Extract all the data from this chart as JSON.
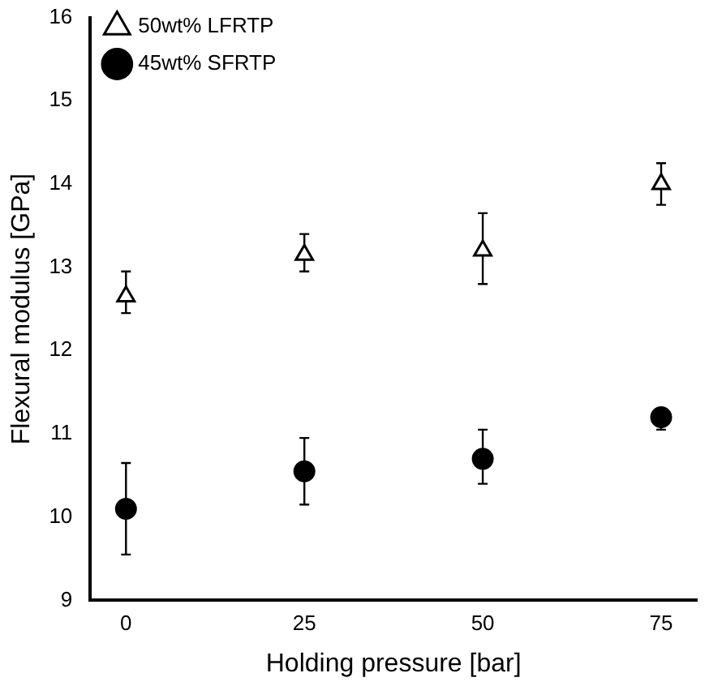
{
  "chart_data": {
    "type": "scatter",
    "xlabel": "Holding pressure [bar]",
    "ylabel": "Flexural modulus [GPa]",
    "x": [
      0,
      25,
      50,
      75
    ],
    "xlim": [
      -5,
      80
    ],
    "xticks": [
      0,
      25,
      50,
      75
    ],
    "ylim": [
      9,
      16
    ],
    "yticks": [
      9,
      10,
      11,
      12,
      13,
      14,
      15,
      16
    ],
    "series": [
      {
        "name": "50wt% LFRTP",
        "color": "#000000",
        "marker": "triangle",
        "values": [
          12.65,
          13.15,
          13.2,
          14.0
        ],
        "errors": [
          [
            12.45,
            12.95
          ],
          [
            12.95,
            13.4
          ],
          [
            12.8,
            13.65
          ],
          [
            13.75,
            14.25
          ]
        ]
      },
      {
        "name": "45wt% SFRTP",
        "color": "#000000",
        "marker": "circle",
        "values": [
          10.1,
          10.55,
          10.7,
          11.2
        ],
        "errors": [
          [
            9.55,
            10.65
          ],
          [
            10.15,
            10.95
          ],
          [
            10.4,
            11.05
          ],
          [
            11.05,
            11.2
          ]
        ]
      }
    ],
    "grid": false,
    "legend": "top left"
  }
}
